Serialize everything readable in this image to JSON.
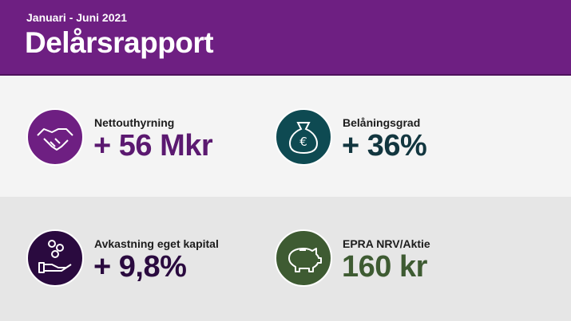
{
  "header": {
    "subtitle": "Januari - Juni 2021",
    "title": "Delårsrapport"
  },
  "kpis": [
    {
      "label": "Nettouthyrning",
      "value": "+ 56 Mkr"
    },
    {
      "label": "Belåningsgrad",
      "value": "+ 36%"
    },
    {
      "label": "Avkastning eget kapital",
      "value": "+ 9,8%"
    },
    {
      "label": "EPRA NRV/Aktie",
      "value": "160 kr"
    }
  ]
}
